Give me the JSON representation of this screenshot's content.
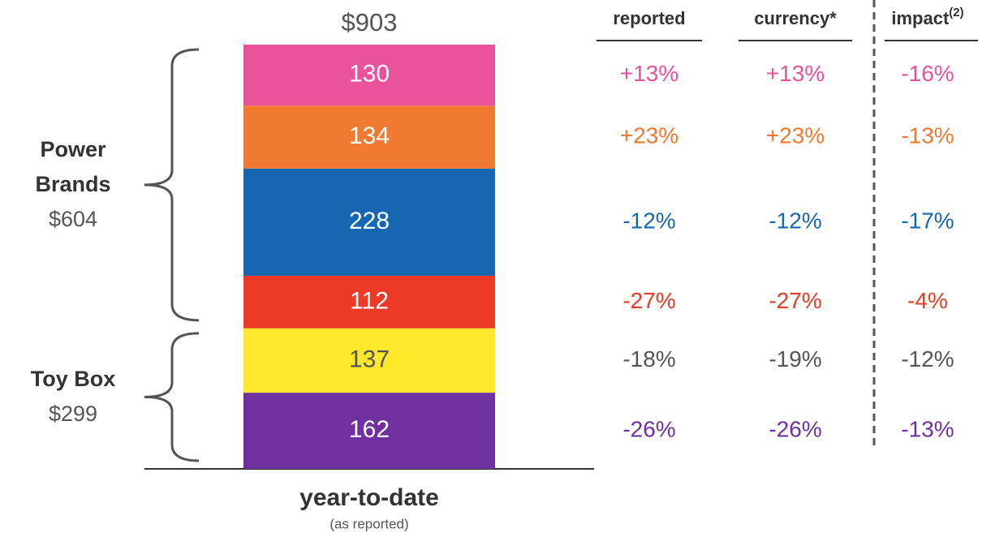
{
  "chart_data": {
    "type": "stacked_bar",
    "category": "year-to-date",
    "subtitle": "(as reported)",
    "total": {
      "value": 903,
      "label": "$903"
    },
    "columns": [
      {
        "text": "reported"
      },
      {
        "text": "currency*"
      },
      {
        "text": "impact",
        "sup": "(2)"
      }
    ],
    "groups": [
      {
        "name": "Power Brands",
        "total": {
          "value": 604,
          "label": "$604"
        },
        "segments": [
          {
            "value": 130,
            "color": "#ea519b",
            "text_color": "#ffffff",
            "changes": [
              "+13%",
              "+13%",
              "-16%"
            ],
            "changes_color": "#ea519b"
          },
          {
            "value": 134,
            "color": "#f07a32",
            "text_color": "#ffffff",
            "changes": [
              "+23%",
              "+23%",
              "-13%"
            ],
            "changes_color": "#f07a32"
          },
          {
            "value": 228,
            "color": "#1766b1",
            "text_color": "#ffffff",
            "changes": [
              "-12%",
              "-12%",
              "-17%"
            ],
            "changes_color": "#1766b1"
          },
          {
            "value": 112,
            "color": "#ec3a26",
            "text_color": "#ffffff",
            "changes": [
              "-27%",
              "-27%",
              "-4%"
            ],
            "changes_color": "#ec3a26"
          }
        ]
      },
      {
        "name": "Toy Box",
        "total": {
          "value": 299,
          "label": "$299"
        },
        "segments": [
          {
            "value": 137,
            "color": "#fde82c",
            "text_color": "#555555",
            "changes": [
              "-18%",
              "-19%",
              "-12%"
            ],
            "changes_color": "#555555"
          },
          {
            "value": 162,
            "color": "#7031a0",
            "text_color": "#ffffff",
            "changes": [
              "-26%",
              "-26%",
              "-13%"
            ],
            "changes_color": "#7031a0"
          }
        ]
      }
    ]
  }
}
